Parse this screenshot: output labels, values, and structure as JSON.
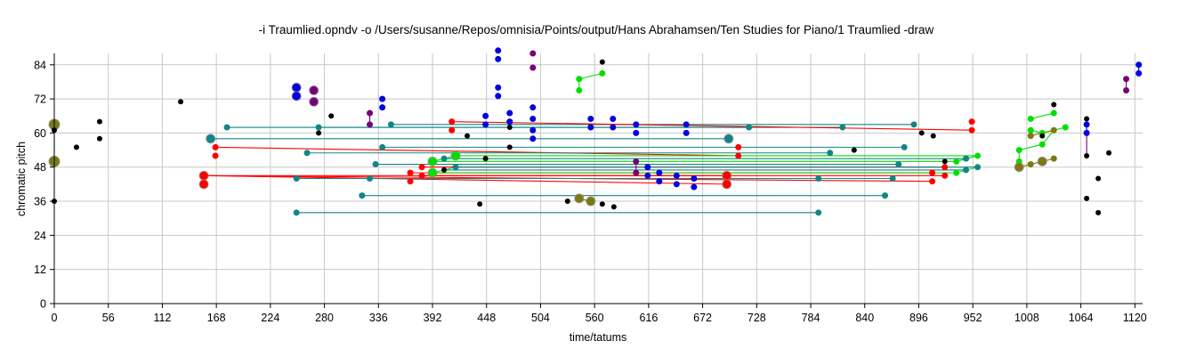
{
  "chart_data": {
    "type": "scatter",
    "title": "-i Traumlied.opndv -o /Users/susanne/Repos/omnisia/Points/output/Hans Abrahamsen/Ten Studies for Piano/1 Traumlied -draw",
    "xlabel": "time/tatums",
    "ylabel": "chromatic pitch",
    "xlim": [
      0,
      1128
    ],
    "ylim": [
      0,
      88
    ],
    "xticks": [
      0,
      56,
      112,
      168,
      224,
      280,
      336,
      392,
      448,
      504,
      560,
      616,
      672,
      728,
      784,
      840,
      896,
      952,
      1008,
      1064,
      1120
    ],
    "yticks": [
      0,
      12,
      24,
      36,
      48,
      60,
      72,
      84
    ],
    "grid": true,
    "colors": {
      "black": "#000000",
      "red": "#ff0000",
      "blue": "#0000e0",
      "teal": "#138585",
      "green": "#00e000",
      "purple": "#780078",
      "olive": "#7a7a10"
    },
    "points": [
      {
        "x": 0,
        "y": 63,
        "c": "olive",
        "s": 6
      },
      {
        "x": 0,
        "y": 61,
        "c": "black",
        "s": 3
      },
      {
        "x": 0,
        "y": 50,
        "c": "olive",
        "s": 6
      },
      {
        "x": 0,
        "y": 36,
        "c": "black",
        "s": 3
      },
      {
        "x": 23,
        "y": 55,
        "c": "black",
        "s": 3
      },
      {
        "x": 47,
        "y": 64,
        "c": "black",
        "s": 3
      },
      {
        "x": 47,
        "y": 58,
        "c": "black",
        "s": 3
      },
      {
        "x": 131,
        "y": 71,
        "c": "black",
        "s": 3
      },
      {
        "x": 155,
        "y": 45,
        "c": "red",
        "s": 5
      },
      {
        "x": 155,
        "y": 42,
        "c": "red",
        "s": 5
      },
      {
        "x": 162,
        "y": 58,
        "c": "teal",
        "s": 5
      },
      {
        "x": 167,
        "y": 55,
        "c": "red",
        "s": 3.5
      },
      {
        "x": 167,
        "y": 52,
        "c": "red",
        "s": 3.5
      },
      {
        "x": 179,
        "y": 62,
        "c": "teal",
        "s": 3.5
      },
      {
        "x": 251,
        "y": 76,
        "c": "blue",
        "s": 5
      },
      {
        "x": 251,
        "y": 73,
        "c": "blue",
        "s": 5
      },
      {
        "x": 251,
        "y": 44,
        "c": "teal",
        "s": 3.5
      },
      {
        "x": 251,
        "y": 32,
        "c": "teal",
        "s": 3.5
      },
      {
        "x": 262,
        "y": 53,
        "c": "teal",
        "s": 3.5
      },
      {
        "x": 269,
        "y": 75,
        "c": "purple",
        "s": 5
      },
      {
        "x": 269,
        "y": 71,
        "c": "purple",
        "s": 5
      },
      {
        "x": 274,
        "y": 62,
        "c": "teal",
        "s": 3.5
      },
      {
        "x": 274,
        "y": 60,
        "c": "black",
        "s": 3
      },
      {
        "x": 287,
        "y": 66,
        "c": "black",
        "s": 3
      },
      {
        "x": 319,
        "y": 38,
        "c": "teal",
        "s": 3.5
      },
      {
        "x": 327,
        "y": 67,
        "c": "purple",
        "s": 3.5
      },
      {
        "x": 327,
        "y": 63,
        "c": "purple",
        "s": 3.5
      },
      {
        "x": 327,
        "y": 44,
        "c": "teal",
        "s": 3.5
      },
      {
        "x": 333,
        "y": 49,
        "c": "teal",
        "s": 3.5
      },
      {
        "x": 340,
        "y": 72,
        "c": "blue",
        "s": 3.5
      },
      {
        "x": 340,
        "y": 69,
        "c": "blue",
        "s": 3.5
      },
      {
        "x": 340,
        "y": 55,
        "c": "teal",
        "s": 3.5
      },
      {
        "x": 349,
        "y": 63,
        "c": "teal",
        "s": 3.5
      },
      {
        "x": 369,
        "y": 46,
        "c": "red",
        "s": 3.5
      },
      {
        "x": 369,
        "y": 43,
        "c": "red",
        "s": 3.5
      },
      {
        "x": 381,
        "y": 48,
        "c": "red",
        "s": 3.5
      },
      {
        "x": 381,
        "y": 45,
        "c": "red",
        "s": 3.5
      },
      {
        "x": 392,
        "y": 50,
        "c": "green",
        "s": 5
      },
      {
        "x": 392,
        "y": 46,
        "c": "green",
        "s": 5
      },
      {
        "x": 404,
        "y": 51,
        "c": "teal",
        "s": 3.5
      },
      {
        "x": 404,
        "y": 47,
        "c": "black",
        "s": 3
      },
      {
        "x": 412,
        "y": 64,
        "c": "red",
        "s": 3.5
      },
      {
        "x": 412,
        "y": 61,
        "c": "red",
        "s": 3.5
      },
      {
        "x": 416,
        "y": 52,
        "c": "green",
        "s": 5
      },
      {
        "x": 416,
        "y": 48,
        "c": "teal",
        "s": 3.5
      },
      {
        "x": 428,
        "y": 59,
        "c": "black",
        "s": 3
      },
      {
        "x": 441,
        "y": 35,
        "c": "black",
        "s": 3
      },
      {
        "x": 447,
        "y": 66,
        "c": "blue",
        "s": 3.5
      },
      {
        "x": 447,
        "y": 63,
        "c": "blue",
        "s": 3.5
      },
      {
        "x": 447,
        "y": 51,
        "c": "black",
        "s": 3
      },
      {
        "x": 460,
        "y": 89,
        "c": "blue",
        "s": 3.5
      },
      {
        "x": 460,
        "y": 86,
        "c": "blue",
        "s": 3.5
      },
      {
        "x": 460,
        "y": 76,
        "c": "blue",
        "s": 3.5
      },
      {
        "x": 460,
        "y": 73,
        "c": "blue",
        "s": 3.5
      },
      {
        "x": 472,
        "y": 67,
        "c": "blue",
        "s": 3.5
      },
      {
        "x": 472,
        "y": 64,
        "c": "blue",
        "s": 3.5
      },
      {
        "x": 472,
        "y": 62,
        "c": "black",
        "s": 3
      },
      {
        "x": 472,
        "y": 55,
        "c": "black",
        "s": 3
      },
      {
        "x": 496,
        "y": 88,
        "c": "purple",
        "s": 3.5
      },
      {
        "x": 496,
        "y": 83,
        "c": "purple",
        "s": 3.5
      },
      {
        "x": 496,
        "y": 69,
        "c": "blue",
        "s": 3.5
      },
      {
        "x": 496,
        "y": 65,
        "c": "blue",
        "s": 3.5
      },
      {
        "x": 496,
        "y": 61,
        "c": "blue",
        "s": 3.5
      },
      {
        "x": 496,
        "y": 58,
        "c": "blue",
        "s": 3.5
      },
      {
        "x": 532,
        "y": 36,
        "c": "black",
        "s": 3
      },
      {
        "x": 544,
        "y": 79,
        "c": "green",
        "s": 3.5
      },
      {
        "x": 544,
        "y": 75,
        "c": "green",
        "s": 3.5
      },
      {
        "x": 544,
        "y": 37,
        "c": "olive",
        "s": 5
      },
      {
        "x": 556,
        "y": 65,
        "c": "blue",
        "s": 3.5
      },
      {
        "x": 556,
        "y": 62,
        "c": "blue",
        "s": 3.5
      },
      {
        "x": 556,
        "y": 36,
        "c": "olive",
        "s": 5
      },
      {
        "x": 568,
        "y": 85,
        "c": "black",
        "s": 3
      },
      {
        "x": 568,
        "y": 81,
        "c": "green",
        "s": 3.5
      },
      {
        "x": 568,
        "y": 35,
        "c": "black",
        "s": 3
      },
      {
        "x": 579,
        "y": 65,
        "c": "blue",
        "s": 3.5
      },
      {
        "x": 579,
        "y": 62,
        "c": "blue",
        "s": 3.5
      },
      {
        "x": 580,
        "y": 34,
        "c": "black",
        "s": 3
      },
      {
        "x": 603,
        "y": 63,
        "c": "blue",
        "s": 3.5
      },
      {
        "x": 603,
        "y": 60,
        "c": "blue",
        "s": 3.5
      },
      {
        "x": 603,
        "y": 50,
        "c": "purple",
        "s": 3.5
      },
      {
        "x": 603,
        "y": 46,
        "c": "purple",
        "s": 3.5
      },
      {
        "x": 615,
        "y": 48,
        "c": "blue",
        "s": 3.5
      },
      {
        "x": 615,
        "y": 45,
        "c": "blue",
        "s": 3.5
      },
      {
        "x": 627,
        "y": 46,
        "c": "blue",
        "s": 3.5
      },
      {
        "x": 627,
        "y": 43,
        "c": "blue",
        "s": 3.5
      },
      {
        "x": 645,
        "y": 45,
        "c": "blue",
        "s": 3.5
      },
      {
        "x": 645,
        "y": 42,
        "c": "blue",
        "s": 3.5
      },
      {
        "x": 655,
        "y": 63,
        "c": "blue",
        "s": 3.5
      },
      {
        "x": 655,
        "y": 60,
        "c": "blue",
        "s": 3.5
      },
      {
        "x": 663,
        "y": 44,
        "c": "blue",
        "s": 3.5
      },
      {
        "x": 663,
        "y": 41,
        "c": "blue",
        "s": 3.5
      },
      {
        "x": 699,
        "y": 58,
        "c": "teal",
        "s": 5
      },
      {
        "x": 697,
        "y": 45,
        "c": "red",
        "s": 5
      },
      {
        "x": 697,
        "y": 42,
        "c": "red",
        "s": 5
      },
      {
        "x": 709,
        "y": 55,
        "c": "red",
        "s": 3.5
      },
      {
        "x": 709,
        "y": 52,
        "c": "red",
        "s": 3.5
      },
      {
        "x": 720,
        "y": 62,
        "c": "teal",
        "s": 3.5
      },
      {
        "x": 792,
        "y": 44,
        "c": "teal",
        "s": 3.5
      },
      {
        "x": 792,
        "y": 32,
        "c": "teal",
        "s": 3.5
      },
      {
        "x": 804,
        "y": 53,
        "c": "teal",
        "s": 3.5
      },
      {
        "x": 817,
        "y": 62,
        "c": "teal",
        "s": 3.5
      },
      {
        "x": 829,
        "y": 54,
        "c": "black",
        "s": 3
      },
      {
        "x": 861,
        "y": 38,
        "c": "teal",
        "s": 3.5
      },
      {
        "x": 869,
        "y": 44,
        "c": "teal",
        "s": 3.5
      },
      {
        "x": 875,
        "y": 49,
        "c": "teal",
        "s": 3.5
      },
      {
        "x": 881,
        "y": 55,
        "c": "teal",
        "s": 3.5
      },
      {
        "x": 891,
        "y": 63,
        "c": "teal",
        "s": 3.5
      },
      {
        "x": 899,
        "y": 60,
        "c": "black",
        "s": 3
      },
      {
        "x": 911,
        "y": 59,
        "c": "black",
        "s": 3
      },
      {
        "x": 910,
        "y": 46,
        "c": "red",
        "s": 3.5
      },
      {
        "x": 910,
        "y": 43,
        "c": "red",
        "s": 3.5
      },
      {
        "x": 923,
        "y": 50,
        "c": "black",
        "s": 3
      },
      {
        "x": 923,
        "y": 48,
        "c": "red",
        "s": 3.5
      },
      {
        "x": 923,
        "y": 45,
        "c": "red",
        "s": 3.5
      },
      {
        "x": 935,
        "y": 50,
        "c": "green",
        "s": 3.5
      },
      {
        "x": 935,
        "y": 46,
        "c": "green",
        "s": 3.5
      },
      {
        "x": 945,
        "y": 51,
        "c": "teal",
        "s": 3.5
      },
      {
        "x": 945,
        "y": 47,
        "c": "teal",
        "s": 3.5
      },
      {
        "x": 951,
        "y": 64,
        "c": "red",
        "s": 3.5
      },
      {
        "x": 951,
        "y": 61,
        "c": "red",
        "s": 3.5
      },
      {
        "x": 957,
        "y": 52,
        "c": "green",
        "s": 3.5
      },
      {
        "x": 957,
        "y": 48,
        "c": "teal",
        "s": 3.5
      },
      {
        "x": 1000,
        "y": 54,
        "c": "green",
        "s": 3.5
      },
      {
        "x": 1000,
        "y": 50,
        "c": "green",
        "s": 3.5
      },
      {
        "x": 1000,
        "y": 48,
        "c": "olive",
        "s": 5
      },
      {
        "x": 1012,
        "y": 65,
        "c": "green",
        "s": 3.5
      },
      {
        "x": 1012,
        "y": 61,
        "c": "green",
        "s": 3.5
      },
      {
        "x": 1012,
        "y": 59,
        "c": "olive",
        "s": 3.5
      },
      {
        "x": 1012,
        "y": 49,
        "c": "olive",
        "s": 3.5
      },
      {
        "x": 1024,
        "y": 60,
        "c": "green",
        "s": 3.5
      },
      {
        "x": 1024,
        "y": 59,
        "c": "black",
        "s": 3
      },
      {
        "x": 1024,
        "y": 56,
        "c": "green",
        "s": 3.5
      },
      {
        "x": 1024,
        "y": 50,
        "c": "olive",
        "s": 5
      },
      {
        "x": 1036,
        "y": 70,
        "c": "black",
        "s": 3
      },
      {
        "x": 1036,
        "y": 67,
        "c": "green",
        "s": 3.5
      },
      {
        "x": 1036,
        "y": 61,
        "c": "olive",
        "s": 3.5
      },
      {
        "x": 1036,
        "y": 51,
        "c": "olive",
        "s": 3.5
      },
      {
        "x": 1048,
        "y": 62,
        "c": "green",
        "s": 3.5
      },
      {
        "x": 1070,
        "y": 65,
        "c": "black",
        "s": 3
      },
      {
        "x": 1070,
        "y": 63,
        "c": "blue",
        "s": 3.5
      },
      {
        "x": 1070,
        "y": 60,
        "c": "blue",
        "s": 3.5
      },
      {
        "x": 1070,
        "y": 52,
        "c": "black",
        "s": 3
      },
      {
        "x": 1070,
        "y": 37,
        "c": "black",
        "s": 3
      },
      {
        "x": 1082,
        "y": 44,
        "c": "black",
        "s": 3
      },
      {
        "x": 1082,
        "y": 32,
        "c": "black",
        "s": 3
      },
      {
        "x": 1093,
        "y": 53,
        "c": "black",
        "s": 3
      },
      {
        "x": 1111,
        "y": 79,
        "c": "purple",
        "s": 3.5
      },
      {
        "x": 1111,
        "y": 75,
        "c": "purple",
        "s": 3.5
      },
      {
        "x": 1124,
        "y": 84,
        "c": "blue",
        "s": 3.5
      },
      {
        "x": 1124,
        "y": 81,
        "c": "blue",
        "s": 3.5
      }
    ],
    "segments": [
      {
        "x1": 0,
        "y1": 63,
        "x2": 0,
        "y2": 50,
        "c": "olive"
      },
      {
        "x1": 155,
        "y1": 45,
        "x2": 697,
        "y2": 45,
        "c": "red"
      },
      {
        "x1": 155,
        "y1": 45,
        "x2": 697,
        "y2": 42,
        "c": "red"
      },
      {
        "x1": 155,
        "y1": 45,
        "x2": 910,
        "y2": 43,
        "c": "red"
      },
      {
        "x1": 167,
        "y1": 55,
        "x2": 709,
        "y2": 52,
        "c": "red"
      },
      {
        "x1": 162,
        "y1": 58,
        "x2": 699,
        "y2": 58,
        "c": "teal"
      },
      {
        "x1": 179,
        "y1": 62,
        "x2": 720,
        "y2": 62,
        "c": "teal"
      },
      {
        "x1": 251,
        "y1": 32,
        "x2": 792,
        "y2": 32,
        "c": "teal"
      },
      {
        "x1": 251,
        "y1": 44,
        "x2": 792,
        "y2": 44,
        "c": "teal"
      },
      {
        "x1": 262,
        "y1": 53,
        "x2": 804,
        "y2": 53,
        "c": "teal"
      },
      {
        "x1": 274,
        "y1": 62,
        "x2": 817,
        "y2": 62,
        "c": "teal"
      },
      {
        "x1": 319,
        "y1": 38,
        "x2": 861,
        "y2": 38,
        "c": "teal"
      },
      {
        "x1": 327,
        "y1": 44,
        "x2": 869,
        "y2": 44,
        "c": "teal"
      },
      {
        "x1": 333,
        "y1": 49,
        "x2": 875,
        "y2": 49,
        "c": "teal"
      },
      {
        "x1": 340,
        "y1": 55,
        "x2": 881,
        "y2": 55,
        "c": "teal"
      },
      {
        "x1": 349,
        "y1": 63,
        "x2": 891,
        "y2": 63,
        "c": "teal"
      },
      {
        "x1": 369,
        "y1": 46,
        "x2": 910,
        "y2": 46,
        "c": "red"
      },
      {
        "x1": 381,
        "y1": 48,
        "x2": 923,
        "y2": 48,
        "c": "red"
      },
      {
        "x1": 381,
        "y1": 45,
        "x2": 923,
        "y2": 45,
        "c": "red"
      },
      {
        "x1": 392,
        "y1": 50,
        "x2": 935,
        "y2": 50,
        "c": "green"
      },
      {
        "x1": 392,
        "y1": 46,
        "x2": 935,
        "y2": 46,
        "c": "green"
      },
      {
        "x1": 404,
        "y1": 51,
        "x2": 945,
        "y2": 51,
        "c": "teal"
      },
      {
        "x1": 404,
        "y1": 47,
        "x2": 945,
        "y2": 47,
        "c": "teal"
      },
      {
        "x1": 412,
        "y1": 64,
        "x2": 951,
        "y2": 61,
        "c": "red"
      },
      {
        "x1": 416,
        "y1": 52,
        "x2": 957,
        "y2": 52,
        "c": "green"
      },
      {
        "x1": 416,
        "y1": 48,
        "x2": 957,
        "y2": 48,
        "c": "teal"
      },
      {
        "x1": 327,
        "y1": 67,
        "x2": 327,
        "y2": 63,
        "c": "purple"
      },
      {
        "x1": 392,
        "y1": 50,
        "x2": 416,
        "y2": 52,
        "c": "green"
      },
      {
        "x1": 392,
        "y1": 46,
        "x2": 416,
        "y2": 48,
        "c": "green"
      },
      {
        "x1": 544,
        "y1": 79,
        "x2": 568,
        "y2": 81,
        "c": "green"
      },
      {
        "x1": 544,
        "y1": 79,
        "x2": 544,
        "y2": 75,
        "c": "green"
      },
      {
        "x1": 544,
        "y1": 37,
        "x2": 556,
        "y2": 36,
        "c": "olive"
      },
      {
        "x1": 603,
        "y1": 50,
        "x2": 603,
        "y2": 46,
        "c": "purple"
      },
      {
        "x1": 935,
        "y1": 50,
        "x2": 957,
        "y2": 52,
        "c": "green"
      },
      {
        "x1": 935,
        "y1": 46,
        "x2": 957,
        "y2": 48,
        "c": "green"
      },
      {
        "x1": 1000,
        "y1": 54,
        "x2": 1024,
        "y2": 56,
        "c": "green"
      },
      {
        "x1": 1000,
        "y1": 50,
        "x2": 1000,
        "y2": 54,
        "c": "green"
      },
      {
        "x1": 1012,
        "y1": 65,
        "x2": 1036,
        "y2": 67,
        "c": "green"
      },
      {
        "x1": 1012,
        "y1": 61,
        "x2": 1024,
        "y2": 60,
        "c": "green"
      },
      {
        "x1": 1024,
        "y1": 60,
        "x2": 1048,
        "y2": 62,
        "c": "green"
      },
      {
        "x1": 1024,
        "y1": 56,
        "x2": 1036,
        "y2": 61,
        "c": "green"
      },
      {
        "x1": 1000,
        "y1": 48,
        "x2": 1012,
        "y2": 49,
        "c": "olive"
      },
      {
        "x1": 1012,
        "y1": 49,
        "x2": 1024,
        "y2": 50,
        "c": "olive"
      },
      {
        "x1": 1024,
        "y1": 50,
        "x2": 1036,
        "y2": 51,
        "c": "olive"
      },
      {
        "x1": 1012,
        "y1": 59,
        "x2": 1036,
        "y2": 61,
        "c": "olive"
      },
      {
        "x1": 1070,
        "y1": 63,
        "x2": 1070,
        "y2": 60,
        "c": "blue"
      },
      {
        "x1": 1070,
        "y1": 60,
        "x2": 1070,
        "y2": 52,
        "c": "purple"
      },
      {
        "x1": 1111,
        "y1": 79,
        "x2": 1111,
        "y2": 75,
        "c": "purple"
      },
      {
        "x1": 1124,
        "y1": 84,
        "x2": 1124,
        "y2": 81,
        "c": "blue"
      }
    ]
  }
}
